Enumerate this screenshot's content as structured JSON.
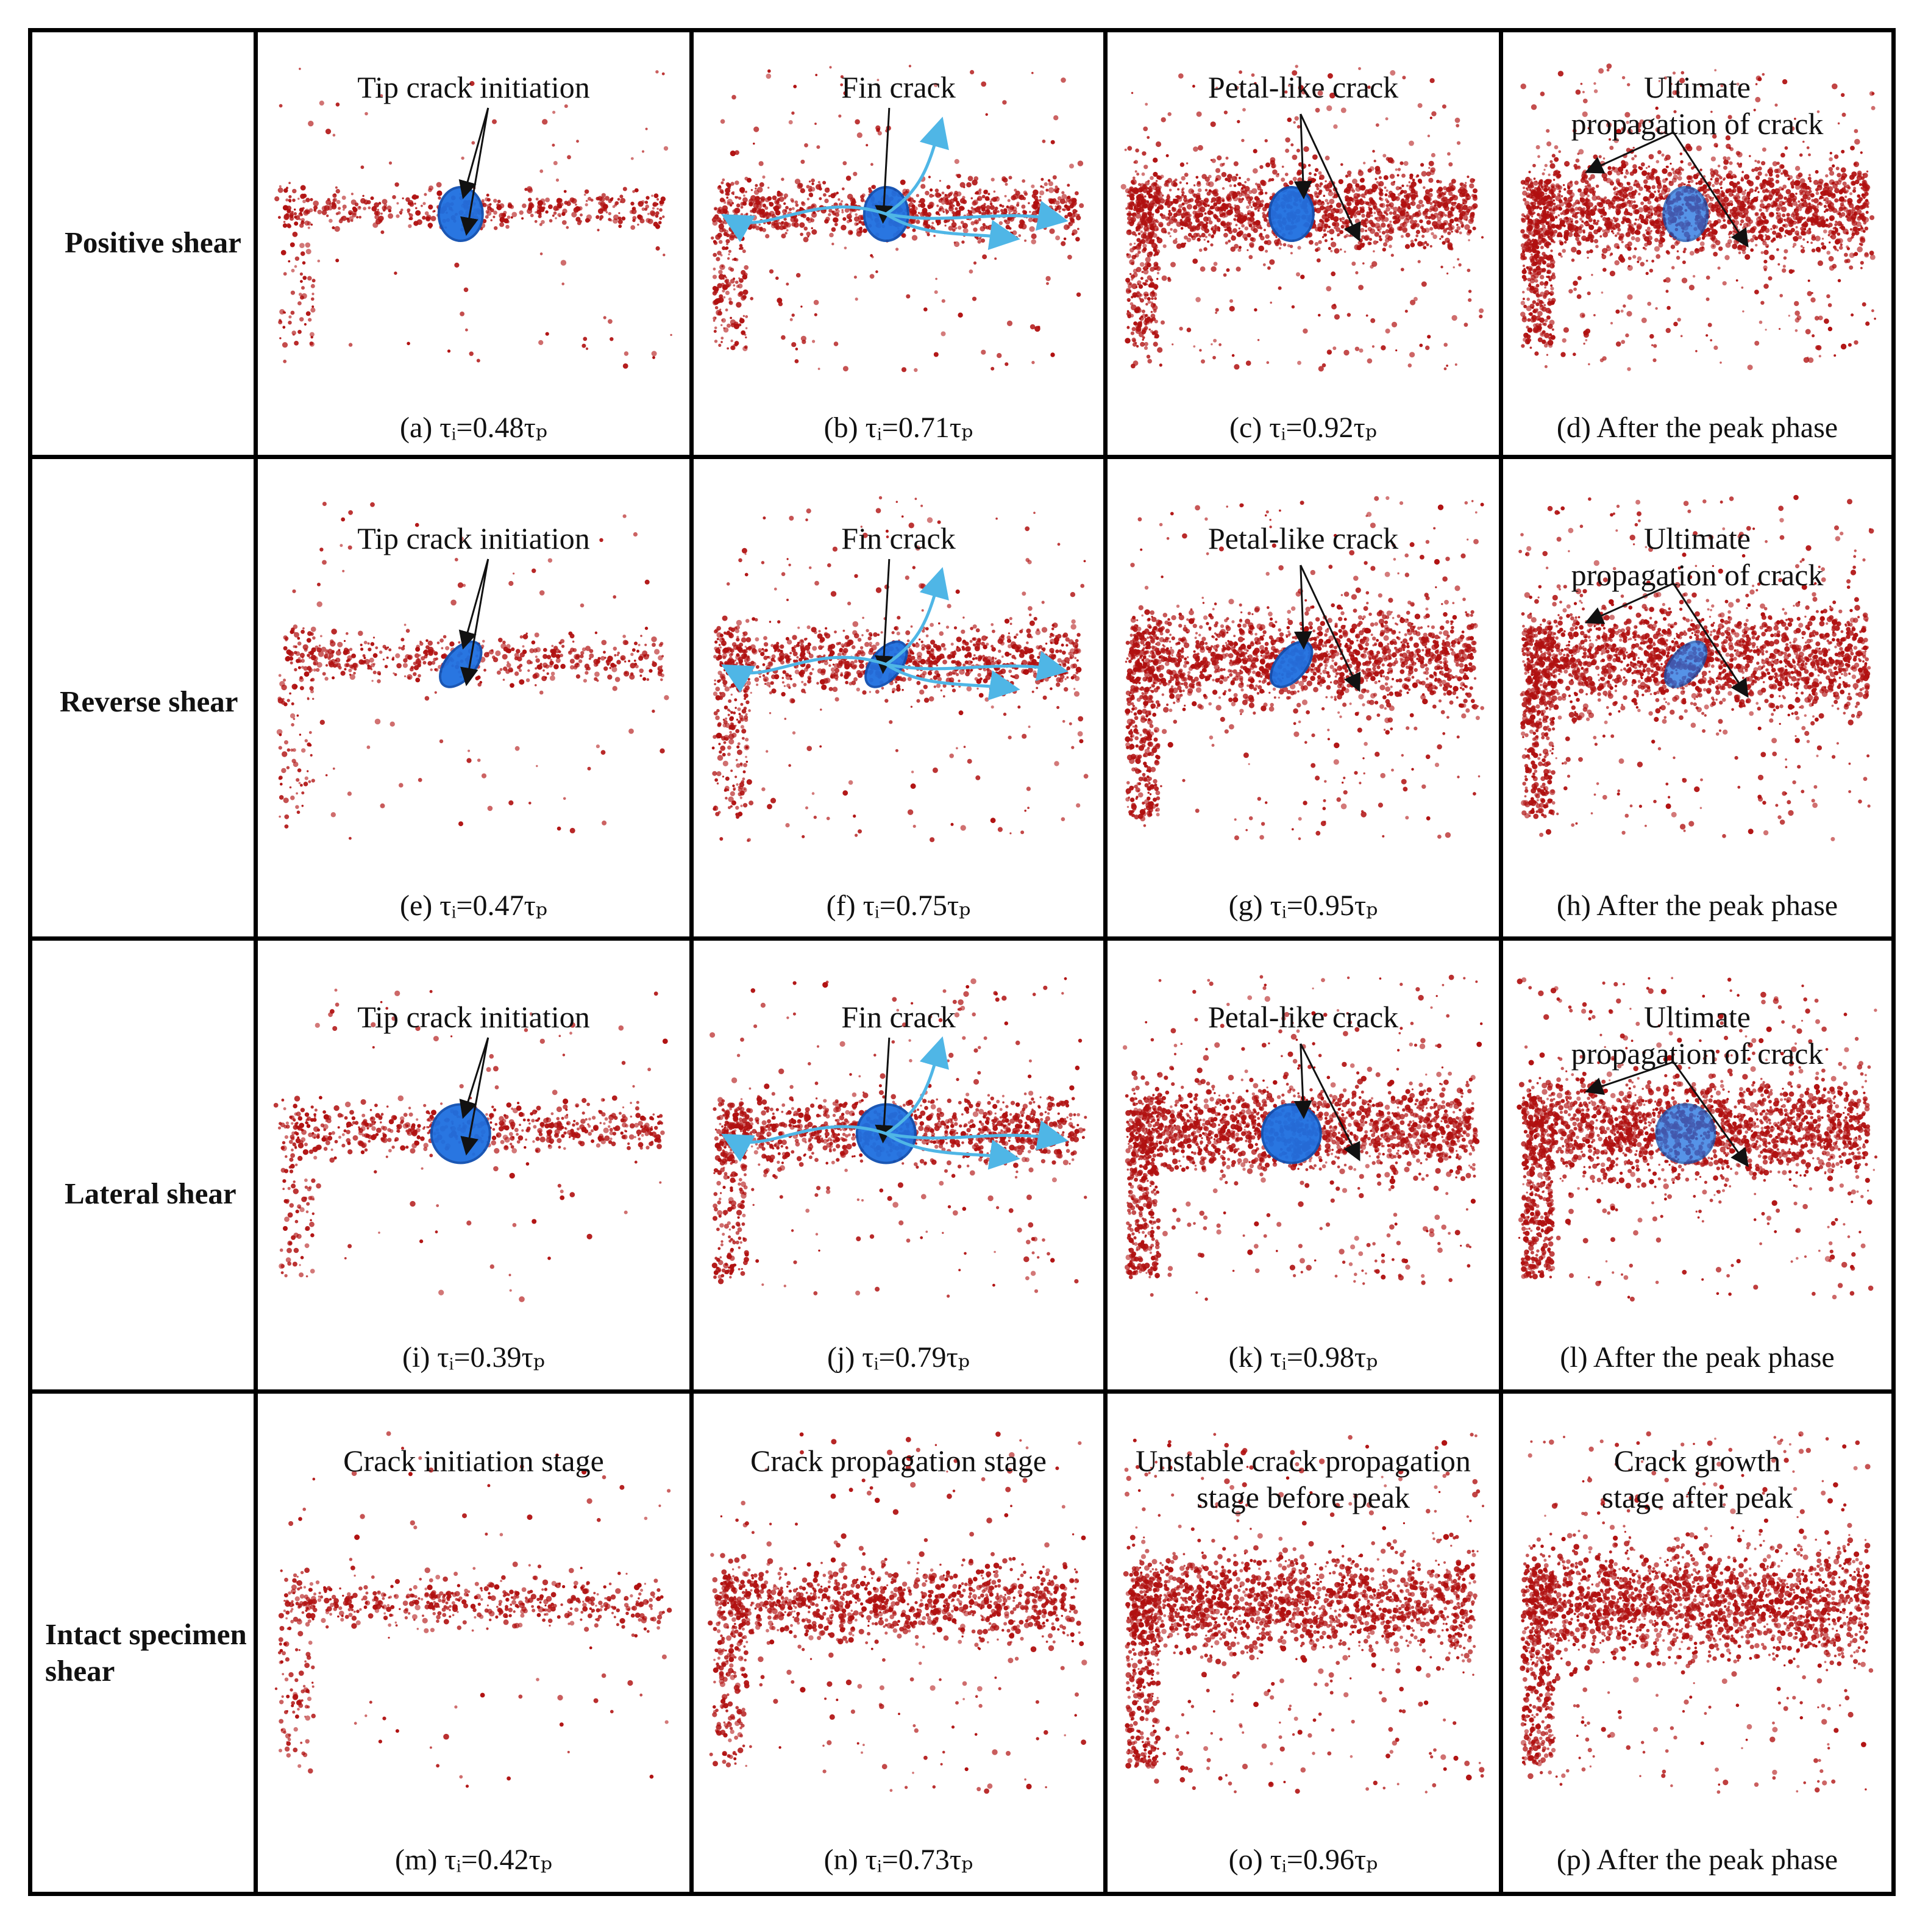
{
  "colors": {
    "particle": "#b01010",
    "joint": "#1e6fe0",
    "jointDark": "#0f4fb0",
    "arrow": "#111111",
    "branch": "#4fb6e6"
  },
  "rows": [
    {
      "label": "Positive shear",
      "cells": [
        {
          "title": "Tip crack initiation",
          "caption": "(a) τᵢ=0.48τₚ",
          "density": 0.18,
          "stage": "initiation",
          "joint": "round"
        },
        {
          "title": "Fin crack",
          "caption": "(b) τᵢ=0.71τₚ",
          "density": 0.45,
          "stage": "fin",
          "joint": "round"
        },
        {
          "title": "Petal-like  crack",
          "caption": "(c) τᵢ=0.92τₚ",
          "density": 0.8,
          "stage": "petal",
          "joint": "round"
        },
        {
          "title": "Ultimate\npropagation of crack",
          "caption": "(d) After the peak phase",
          "density": 1.0,
          "stage": "ultimate",
          "joint": "round"
        }
      ]
    },
    {
      "label": "Reverse shear",
      "cells": [
        {
          "title": "Tip crack initiation",
          "caption": "(e) τᵢ=0.47τₚ",
          "density": 0.2,
          "stage": "initiation",
          "joint": "tilted"
        },
        {
          "title": "Fin crack",
          "caption": "(f) τᵢ=0.75τₚ",
          "density": 0.5,
          "stage": "fin",
          "joint": "tilted"
        },
        {
          "title": "Petal-like  crack",
          "caption": "(g) τᵢ=0.95τₚ",
          "density": 0.85,
          "stage": "petal",
          "joint": "tilted"
        },
        {
          "title": "Ultimate\npropagation of crack",
          "caption": "(h) After the peak phase",
          "density": 1.0,
          "stage": "ultimate",
          "joint": "tilted"
        }
      ]
    },
    {
      "label": "Lateral shear",
      "cells": [
        {
          "title": "Tip crack initiation",
          "caption": "(i) τᵢ=0.39τₚ",
          "density": 0.25,
          "stage": "initiation",
          "joint": "circle"
        },
        {
          "title": "Fin crack",
          "caption": "(j) τᵢ=0.79τₚ",
          "density": 0.55,
          "stage": "fin",
          "joint": "circle"
        },
        {
          "title": "Petal-like  crack",
          "caption": "(k) τᵢ=0.98τₚ",
          "density": 0.85,
          "stage": "petal",
          "joint": "circle"
        },
        {
          "title": "Ultimate\npropagation of crack",
          "caption": "(l) After the peak phase",
          "density": 1.0,
          "stage": "ultimate",
          "joint": "circle"
        }
      ]
    },
    {
      "label": "Intact specimen\nshear",
      "cells": [
        {
          "title": "Crack initiation  stage",
          "caption": "(m) τᵢ=0.42τₚ",
          "density": 0.22,
          "stage": "intact",
          "joint": "none"
        },
        {
          "title": "Crack propagation stage",
          "caption": "(n) τᵢ=0.73τₚ",
          "density": 0.55,
          "stage": "intact",
          "joint": "none"
        },
        {
          "title": "Unstable crack propagation\nstage before peak",
          "caption": "(o) τᵢ=0.96τₚ",
          "density": 0.85,
          "stage": "intact",
          "joint": "none"
        },
        {
          "title": "Crack growth\nstage after peak",
          "caption": "(p) After the peak phase",
          "density": 1.0,
          "stage": "intact",
          "joint": "none"
        }
      ]
    }
  ]
}
